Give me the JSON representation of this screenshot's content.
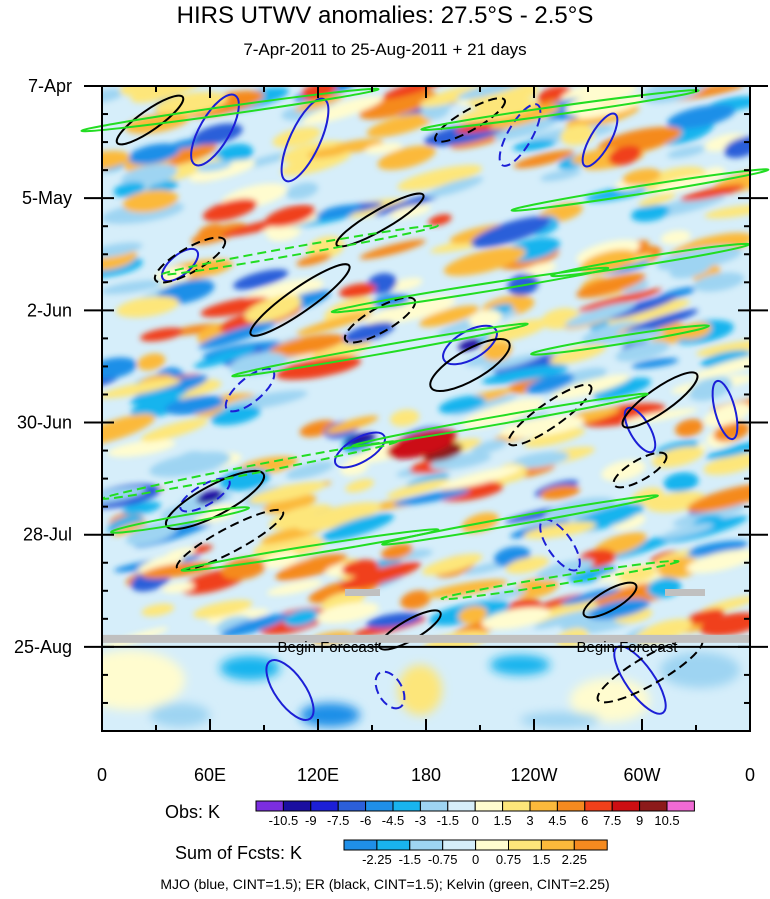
{
  "chart_data": {
    "type": "heatmap",
    "title": "HIRS UTWV anomalies: 27.5°S - 2.5°S",
    "subtitle": "7-Apr-2011 to 25-Aug-2011 + 21 days",
    "x_axis": {
      "ticks": [
        "0",
        "60E",
        "120E",
        "180",
        "120W",
        "60W",
        "0"
      ],
      "longitude_range": [
        0,
        360
      ]
    },
    "y_axis": {
      "ticks": [
        "7-Apr",
        "5-May",
        "2-Jun",
        "30-Jun",
        "28-Jul",
        "25-Aug"
      ],
      "day_range": [
        0,
        161
      ],
      "forecast_start_day": 140
    },
    "forecast_label": "Begin Forecast",
    "obs_colorbar": {
      "label": "Obs: K",
      "levels": [
        "-10.5",
        "-9",
        "-7.5",
        "-6",
        "-4.5",
        "-3",
        "-1.5",
        "0",
        "1.5",
        "3",
        "4.5",
        "6",
        "7.5",
        "9",
        "10.5"
      ],
      "colors": [
        "#7b2ee0",
        "#1a0fa0",
        "#1c1fd6",
        "#2b5fd9",
        "#1f8fe8",
        "#19b4ee",
        "#9ed4f2",
        "#d6eefa",
        "#fffccf",
        "#fde67a",
        "#fbb93b",
        "#f58a1f",
        "#f0401a",
        "#cc0e12",
        "#8c1a1a",
        "#f06ad4"
      ]
    },
    "fcst_colorbar": {
      "label": "Sum of Fcsts: K",
      "levels": [
        "-2.25",
        "-1.5",
        "-0.75",
        "0",
        "0.75",
        "1.5",
        "2.25"
      ],
      "colors": [
        "#1f8fe8",
        "#19b4ee",
        "#9ed4f2",
        "#d6eefa",
        "#fffccf",
        "#fde67a",
        "#fbb93b",
        "#f58a1f"
      ]
    },
    "contour_legend": "MJO (blue, CINT=1.5); ER (black, CINT=1.5); Kelvin (green, CINT=2.25)",
    "contour_colors": {
      "mjo": "#1c1fd6",
      "er": "#000000",
      "kelvin": "#22dd22"
    },
    "missing_color": "#c0c0c0"
  }
}
